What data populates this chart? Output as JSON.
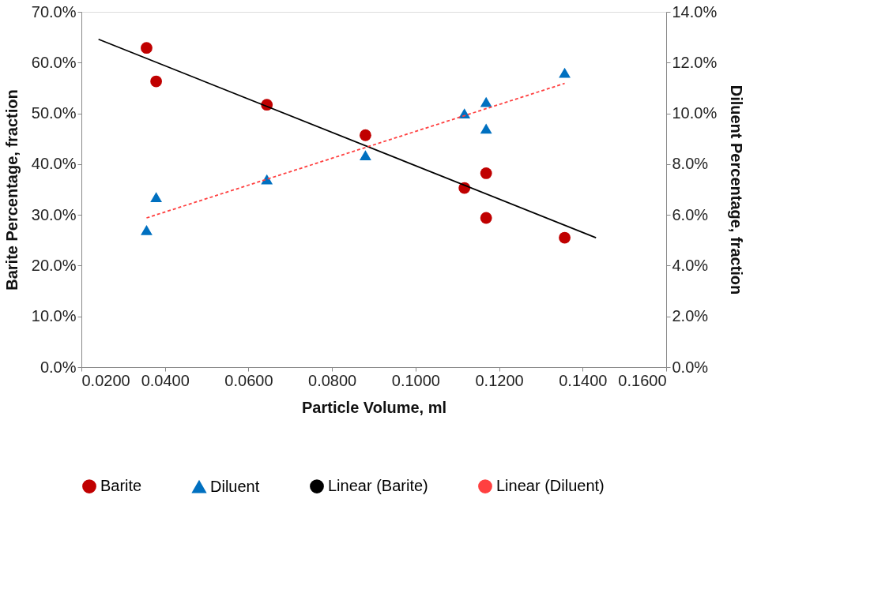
{
  "chart_data": {
    "type": "scatter",
    "xlabel": "Particle Volume, ml",
    "ylabel": "Barite Percentage, fraction",
    "y2label": "Diluent Percentage, fraction",
    "xlim": [
      0.02,
      0.16
    ],
    "xticks": [
      {
        "value": 0.02,
        "label": "0.0200"
      },
      {
        "value": 0.04,
        "label": "0.0400"
      },
      {
        "value": 0.06,
        "label": "0.0600"
      },
      {
        "value": 0.08,
        "label": "0.0800"
      },
      {
        "value": 0.1,
        "label": "0.1000"
      },
      {
        "value": 0.12,
        "label": "0.1200"
      },
      {
        "value": 0.14,
        "label": "0.1400"
      },
      {
        "value": 0.16,
        "label": "0.1600"
      }
    ],
    "ylim": [
      0,
      70
    ],
    "yticks": [
      {
        "value": 0,
        "label": "0.0%"
      },
      {
        "value": 10,
        "label": "10.0%"
      },
      {
        "value": 20,
        "label": "20.0%"
      },
      {
        "value": 30,
        "label": "30.0%"
      },
      {
        "value": 40,
        "label": "40.0%"
      },
      {
        "value": 50,
        "label": "50.0%"
      },
      {
        "value": 60,
        "label": "60.0%"
      },
      {
        "value": 70,
        "label": "70.0%"
      }
    ],
    "y2lim": [
      0,
      14
    ],
    "y2ticks": [
      {
        "value": 0,
        "label": "0.0%"
      },
      {
        "value": 2,
        "label": "2.0%"
      },
      {
        "value": 4,
        "label": "4.0%"
      },
      {
        "value": 6,
        "label": "6.0%"
      },
      {
        "value": 8,
        "label": "8.0%"
      },
      {
        "value": 10,
        "label": "10.0%"
      },
      {
        "value": 12,
        "label": "12.0%"
      },
      {
        "value": 14,
        "label": "14.0%"
      }
    ],
    "grid": false,
    "legend": "bottom",
    "series": [
      {
        "name": "Barite",
        "marker": "circle",
        "color": "#c00000",
        "x": [
          0.0356,
          0.0379,
          0.0644,
          0.088,
          0.1117,
          0.1169,
          0.1169,
          0.1357
        ],
        "values": [
          62.9,
          56.3,
          51.7,
          45.7,
          35.3,
          38.2,
          29.4,
          25.5
        ]
      },
      {
        "name": "Diluent",
        "marker": "triangle",
        "color": "#0070c0",
        "axis": "y2",
        "x": [
          0.0356,
          0.0379,
          0.0644,
          0.088,
          0.1117,
          0.1169,
          0.1169,
          0.1357
        ],
        "values": [
          5.4,
          6.7,
          7.4,
          8.35,
          10.0,
          10.45,
          9.4,
          11.6
        ]
      },
      {
        "name": "Linear (Barite)",
        "type": "line",
        "line_style": "solid",
        "color": "#000000",
        "x": [
          0.0241,
          0.1432
        ],
        "values": [
          64.6,
          25.5
        ]
      },
      {
        "name": "Linear (Diluent)",
        "type": "line",
        "line_style": "dashed",
        "color": "#ff4040",
        "axis": "y2",
        "x": [
          0.0356,
          0.1357
        ],
        "values": [
          5.88,
          11.18
        ]
      }
    ]
  }
}
